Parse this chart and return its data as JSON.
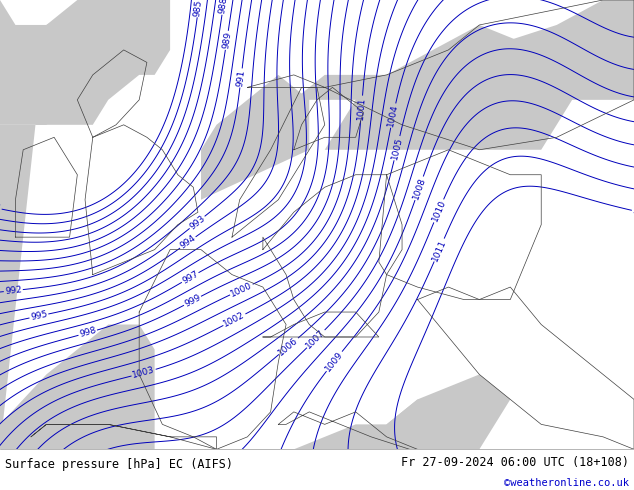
{
  "title_left": "Surface pressure [hPa] EC (AIFS)",
  "title_right": "Fr 27-09-2024 06:00 UTC (18+108)",
  "credit": "©weatheronline.co.uk",
  "land_color": "#b8e890",
  "sea_color": "#c8c8c8",
  "contour_color": "#0000bb",
  "contour_linewidth": 0.7,
  "label_fontsize": 6.5,
  "label_color": "#0000bb",
  "bottom_bar_color": "#d8f0d0",
  "bottom_text_color": "#000000",
  "credit_color": "#0000cc",
  "figsize": [
    6.34,
    4.9
  ],
  "dpi": 100,
  "lon_min": -11,
  "lon_max": 30,
  "lat_min": 43,
  "lat_max": 61
}
